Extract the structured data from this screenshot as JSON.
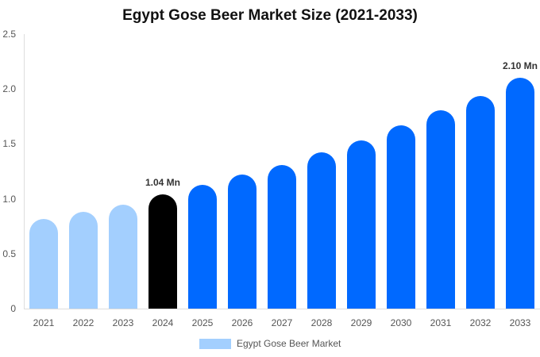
{
  "chart_data": {
    "type": "bar",
    "title": "Egypt Gose Beer Market Size (2021-2033)",
    "xlabel": "",
    "ylabel": "",
    "ylim": [
      0,
      2.5
    ],
    "yticks": [
      "0",
      "0.5",
      "1.0",
      "1.5",
      "2.0",
      "2.5"
    ],
    "grid": false,
    "legend_position": "bottom",
    "categories": [
      "2021",
      "2022",
      "2023",
      "2024",
      "2025",
      "2026",
      "2027",
      "2028",
      "2029",
      "2030",
      "2031",
      "2032",
      "2033"
    ],
    "series": [
      {
        "name": "Egypt Gose Beer Market",
        "values": [
          0.82,
          0.88,
          0.95,
          1.04,
          1.13,
          1.22,
          1.31,
          1.42,
          1.53,
          1.67,
          1.81,
          1.94,
          2.1
        ]
      }
    ],
    "bar_colors": [
      "#a3cffe",
      "#a3cffe",
      "#a3cffe",
      "#000000",
      "#0069ff",
      "#0069ff",
      "#0069ff",
      "#0069ff",
      "#0069ff",
      "#0069ff",
      "#0069ff",
      "#0069ff",
      "#0069ff"
    ],
    "annotations": [
      {
        "category": "2024",
        "text": "1.04 Mn"
      },
      {
        "category": "2033",
        "text": "2.10 Mn"
      }
    ]
  },
  "legend": {
    "label": "Egypt Gose Beer Market",
    "color": "#a3cffe"
  }
}
